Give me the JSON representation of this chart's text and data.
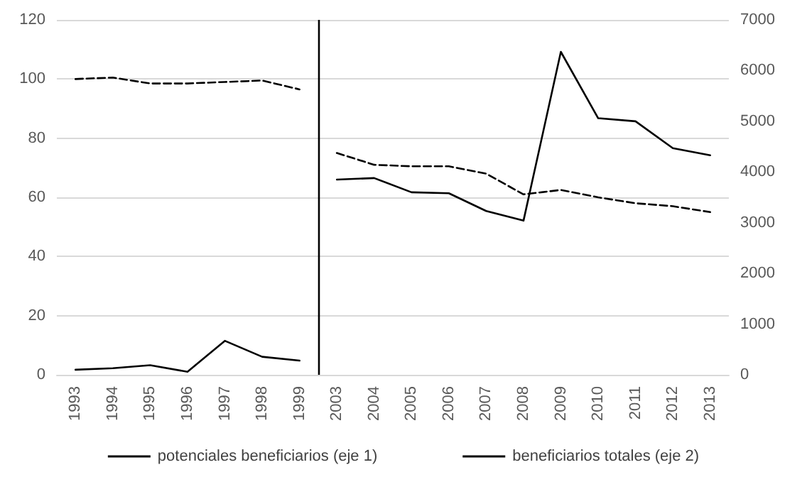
{
  "chart_data": {
    "type": "line",
    "categories": [
      "1993",
      "1994",
      "1995",
      "1996",
      "1997",
      "1998",
      "1999",
      "2003",
      "2004",
      "2005",
      "2006",
      "2007",
      "2008",
      "2009",
      "2010",
      "2011",
      "2012",
      "2013"
    ],
    "series": [
      {
        "name": "potenciales beneficiarios (eje 1)",
        "color": "#000000",
        "line_style": "dashed",
        "values": [
          100,
          100.5,
          98.5,
          98.5,
          99,
          99.5,
          96.5,
          75,
          71,
          70.5,
          70.5,
          68,
          61,
          62.5,
          60,
          58,
          57,
          55
        ]
      },
      {
        "name": "beneficiarios totales (eje 2)",
        "color": "#000000",
        "line_style": "solid",
        "axis": "y2",
        "values": [
          100,
          130,
          190,
          60,
          670,
          355,
          280,
          3850,
          3880,
          3600,
          3580,
          3230,
          3040,
          6370,
          5060,
          5000,
          4470,
          4330
        ]
      }
    ],
    "ylim": [
      0,
      120
    ],
    "yticks": [
      0,
      20,
      40,
      60,
      80,
      100,
      120
    ],
    "y2lim": [
      0,
      7000
    ],
    "y2ticks": [
      0,
      1000,
      2000,
      3000,
      4000,
      5000,
      6000,
      7000
    ],
    "ref_lines": [
      {
        "axis": "x",
        "value": "2003",
        "color": "#000000"
      }
    ],
    "grid": "y",
    "legend": "bottom",
    "marker": "none"
  }
}
